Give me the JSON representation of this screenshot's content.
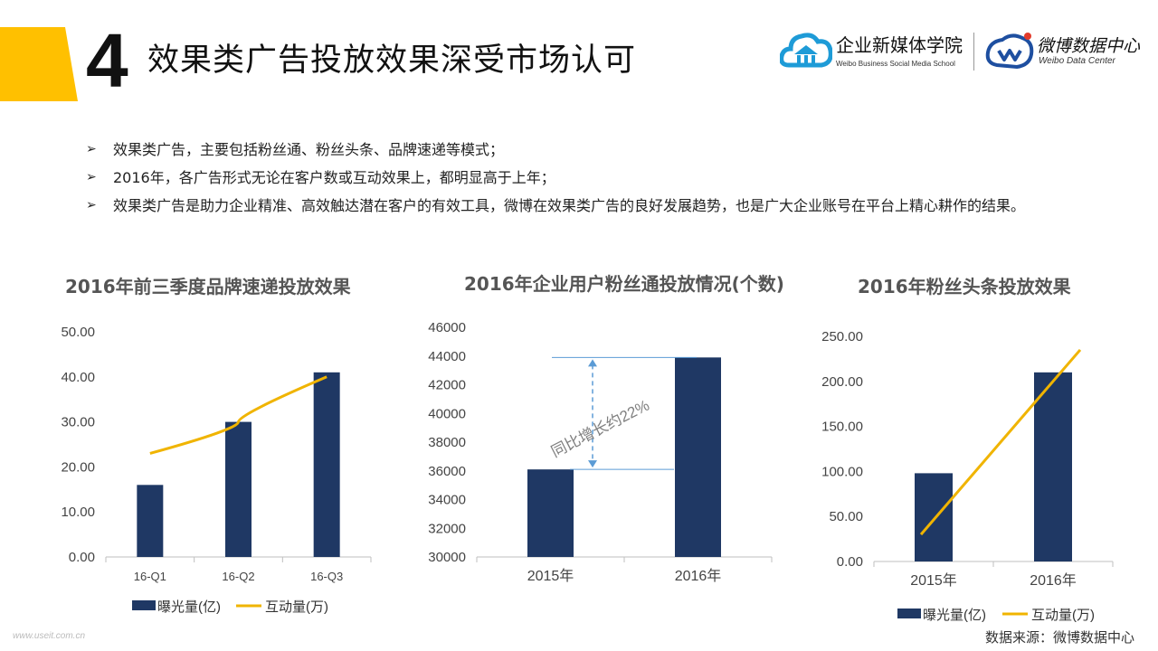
{
  "header": {
    "number": "4",
    "title": "效果类广告投放效果深受市场认可",
    "accent_color": "#FFC000"
  },
  "logos": {
    "school_name": "企业新媒体学院",
    "school_sub": "Weibo Business Social Media School",
    "center_name": "微博数据中心",
    "center_sub": "Weibo Data Center"
  },
  "bullets": [
    "效果类广告，主要包括粉丝通、粉丝头条、品牌速递等模式；",
    "2016年，各广告形式无论在客户数或互动效果上，都明显高于上年；",
    "效果类广告是助力企业精准、高效触达潜在客户的有效工具，微博在效果类广告的良好发展趋势，也是广大企业账号在平台上精心耕作的结果。"
  ],
  "chart_data": [
    {
      "type": "bar",
      "title": "2016年前三季度品牌速递投放效果",
      "categories": [
        "16-Q1",
        "16-Q2",
        "16-Q3"
      ],
      "ylim": [
        0,
        50
      ],
      "yticks": [
        "0.00",
        "10.00",
        "20.00",
        "30.00",
        "40.00",
        "50.00"
      ],
      "series": [
        {
          "name": "曝光量(亿)",
          "kind": "bar",
          "color": "#1F3864",
          "values": [
            16,
            30,
            41
          ]
        },
        {
          "name": "互动量(万)",
          "kind": "line",
          "color": "#F0B400",
          "values": [
            23,
            30,
            40
          ]
        }
      ],
      "legend": "bottom"
    },
    {
      "type": "bar",
      "title": "2016年企业用户粉丝通投放情况(个数)",
      "categories": [
        "2015年",
        "2016年"
      ],
      "ylim": [
        30000,
        46000
      ],
      "yticks": [
        "30000",
        "32000",
        "34000",
        "36000",
        "38000",
        "40000",
        "42000",
        "44000",
        "46000"
      ],
      "series": [
        {
          "name": "",
          "kind": "bar",
          "color": "#1F3864",
          "values": [
            36100,
            43900
          ]
        }
      ],
      "annotation": "同比增长约22%"
    },
    {
      "type": "bar",
      "title": "2016年粉丝头条投放效果",
      "categories": [
        "2015年",
        "2016年"
      ],
      "ylim": [
        0,
        250
      ],
      "yticks": [
        "0.00",
        "50.00",
        "100.00",
        "150.00",
        "200.00",
        "250.00"
      ],
      "series": [
        {
          "name": "曝光量(亿)",
          "kind": "bar",
          "color": "#1F3864",
          "values": [
            98,
            210
          ]
        },
        {
          "name": "互动量(万)",
          "kind": "line",
          "color": "#F0B400",
          "values": [
            30,
            235
          ]
        }
      ],
      "legend": "bottom"
    }
  ],
  "source": "数据来源：微博数据中心",
  "watermark": "www.useit.com.cn"
}
